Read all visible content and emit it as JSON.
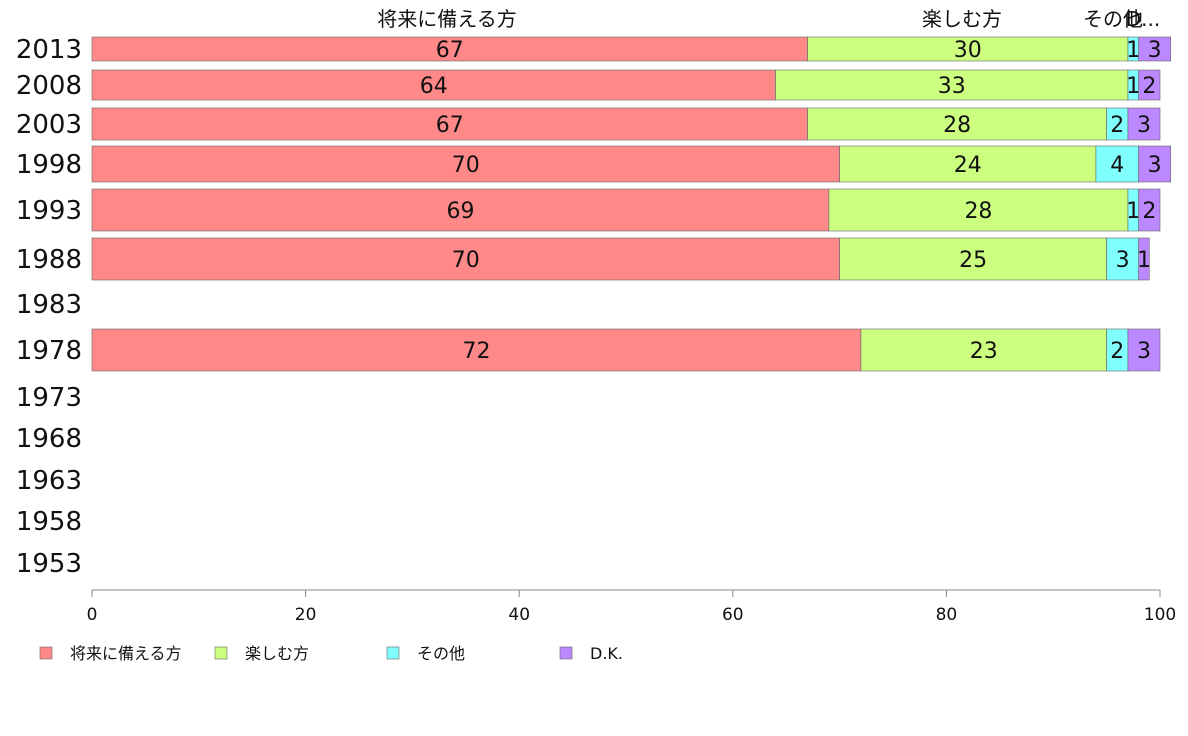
{
  "chart_data": {
    "type": "bar",
    "orientation": "horizontal",
    "stacked": true,
    "title": "",
    "xlabel": "",
    "ylabel": "",
    "xlim": [
      0,
      100
    ],
    "x_ticks": [
      "0",
      "20",
      "40",
      "60",
      "80",
      "100"
    ],
    "categories": [
      "2013",
      "2008",
      "2003",
      "1998",
      "1993",
      "1988",
      "1983",
      "1978",
      "1973",
      "1968",
      "1963",
      "1958",
      "1953"
    ],
    "series": [
      {
        "name": "将来に備える方",
        "color": "#ff8888",
        "values": [
          67,
          64,
          67,
          70,
          69,
          70,
          null,
          72,
          null,
          null,
          null,
          null,
          null
        ]
      },
      {
        "name": "楽しむ方",
        "color": "#ccff80",
        "values": [
          30,
          33,
          28,
          24,
          28,
          25,
          null,
          23,
          null,
          null,
          null,
          null,
          null
        ]
      },
      {
        "name": "その他",
        "color": "#80ffff",
        "values": [
          1,
          1,
          2,
          4,
          1,
          3,
          null,
          2,
          null,
          null,
          null,
          null,
          null
        ]
      },
      {
        "name": "D.K.",
        "color": "#bb88ff",
        "values": [
          3,
          2,
          3,
          3,
          2,
          1,
          null,
          3,
          null,
          null,
          null,
          null,
          null
        ]
      }
    ],
    "column_labels": [
      "将来に備える方",
      "楽しむ方",
      "その他",
      "D..."
    ],
    "legend": {
      "position": "bottom",
      "entries": [
        "将来に備える方",
        "楽しむ方",
        "その他",
        "D.K."
      ]
    },
    "grid": false
  }
}
